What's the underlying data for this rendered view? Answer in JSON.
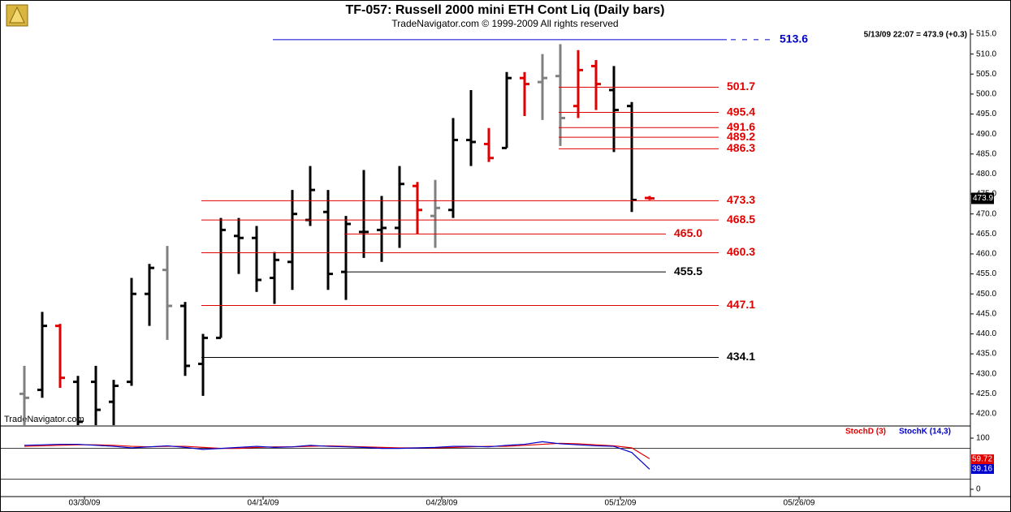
{
  "chart_data": [
    {
      "type": "ohlc",
      "title": "TF-057:  Russell 2000 mini ETH Cont Liq  (Daily bars)",
      "subtitle": "TradeNavigator.com © 1999-2009 All rights reserved",
      "info": "5/13/09 22:07 = 473.9 (+0.3)",
      "watermark": "TradeNavigator.com",
      "last": {
        "value": 473.9,
        "label": "473.9"
      },
      "open": [
        425,
        426,
        442,
        428,
        428,
        423,
        428,
        450,
        456,
        447,
        432.5,
        439,
        464.5,
        464,
        454,
        458,
        468.5,
        470.5,
        455.5,
        465.5,
        466,
        466.5,
        477,
        469.5,
        471,
        488.5,
        487.5,
        486.5,
        504,
        503,
        504.5,
        497,
        507,
        501,
        497,
        474
      ],
      "high": [
        432,
        445.5,
        442.5,
        429.5,
        432,
        428.5,
        454,
        457.5,
        462,
        448,
        440,
        469,
        469,
        467,
        460.5,
        476,
        482,
        476,
        469.5,
        481,
        474.5,
        482,
        478,
        478.5,
        494,
        501,
        491.5,
        505.5,
        505.5,
        510,
        512.5,
        511,
        508.5,
        507,
        498,
        474.5
      ],
      "low": [
        416,
        424,
        426.5,
        415,
        416,
        416,
        427,
        442,
        438.5,
        429.5,
        424.5,
        439,
        455,
        450.5,
        447.5,
        451,
        467,
        451,
        448.5,
        459,
        458,
        461.5,
        465,
        461.5,
        469,
        482,
        483,
        486.5,
        494.5,
        493.5,
        487,
        494,
        496,
        485.5,
        470.5,
        473.5
      ],
      "close": [
        424,
        442,
        429,
        418,
        421,
        427,
        450,
        456.5,
        447,
        432,
        439,
        466,
        464,
        453.5,
        458.5,
        470,
        476,
        455,
        467.5,
        465.5,
        466.5,
        477.5,
        471,
        471.5,
        488.5,
        488,
        484,
        504,
        502.5,
        504,
        494,
        506,
        502.5,
        496,
        473.5,
        473.9
      ],
      "bar_colors": [
        "#808080",
        "#000000",
        "#e00000",
        "#000000",
        "#000000",
        "#000000",
        "#000000",
        "#000000",
        "#808080",
        "#000000",
        "#000000",
        "#000000",
        "#000000",
        "#000000",
        "#000000",
        "#000000",
        "#000000",
        "#000000",
        "#000000",
        "#000000",
        "#000000",
        "#000000",
        "#e00000",
        "#808080",
        "#000000",
        "#000000",
        "#e00000",
        "#000000",
        "#e00000",
        "#808080",
        "#808080",
        "#e00000",
        "#e00000",
        "#000000",
        "#000000",
        "#e00000"
      ],
      "levels": [
        {
          "value": 513.6,
          "label": "513.6",
          "color": "#0000cc"
        },
        {
          "value": 501.7,
          "label": "501.7",
          "color": "#e00000"
        },
        {
          "value": 495.4,
          "label": "495.4",
          "color": "#e00000"
        },
        {
          "value": 491.6,
          "label": "491.6",
          "color": "#e00000"
        },
        {
          "value": 489.2,
          "label": "489.2",
          "color": "#e00000"
        },
        {
          "value": 486.3,
          "label": "486.3",
          "color": "#e00000"
        },
        {
          "value": 473.3,
          "label": "473.3",
          "color": "#e00000"
        },
        {
          "value": 468.5,
          "label": "468.5",
          "color": "#e00000"
        },
        {
          "value": 465.0,
          "label": "465.0",
          "color": "#e00000"
        },
        {
          "value": 460.3,
          "label": "460.3",
          "color": "#e00000"
        },
        {
          "value": 455.5,
          "label": "455.5",
          "color": "#000000"
        },
        {
          "value": 447.1,
          "label": "447.1",
          "color": "#e00000"
        },
        {
          "value": 434.1,
          "label": "434.1",
          "color": "#000000"
        }
      ],
      "ylim": [
        420,
        515
      ],
      "yticks": [
        {
          "value": 420,
          "label": "420.0"
        },
        {
          "value": 425,
          "label": "425.0"
        },
        {
          "value": 430,
          "label": "430.0"
        },
        {
          "value": 435,
          "label": "435.0"
        },
        {
          "value": 440,
          "label": "440.0"
        },
        {
          "value": 445,
          "label": "445.0"
        },
        {
          "value": 450,
          "label": "450.0"
        },
        {
          "value": 455,
          "label": "455.0"
        },
        {
          "value": 460,
          "label": "460.0"
        },
        {
          "value": 465,
          "label": "465.0"
        },
        {
          "value": 470,
          "label": "470.0"
        },
        {
          "value": 475,
          "label": "475.0"
        },
        {
          "value": 480,
          "label": "480.0"
        },
        {
          "value": 485,
          "label": "485.0"
        },
        {
          "value": 490,
          "label": "490.0"
        },
        {
          "value": 495,
          "label": "495.0"
        },
        {
          "value": 500,
          "label": "500.0"
        },
        {
          "value": 505,
          "label": "505.0"
        },
        {
          "value": 510,
          "label": "510.0"
        },
        {
          "value": 515,
          "label": "515.0"
        }
      ],
      "xticks": [
        {
          "value": 3,
          "label": "03/30/09"
        },
        {
          "value": 13,
          "label": "04/14/09"
        },
        {
          "value": 23,
          "label": "04/28/09"
        },
        {
          "value": 33,
          "label": "05/12/09"
        },
        {
          "value": 43,
          "label": "05/26/09"
        }
      ]
    },
    {
      "type": "line",
      "series": [
        {
          "name": "StochD (3)",
          "color": "#e00000",
          "values": [
            84,
            85,
            86,
            87,
            87,
            86,
            84,
            83,
            84,
            84,
            82,
            80,
            80,
            82,
            83,
            83,
            84,
            85,
            84,
            83,
            82,
            81,
            81,
            81,
            82,
            83,
            84,
            84,
            86,
            88,
            90,
            89,
            87,
            85,
            81,
            59.72
          ]
        },
        {
          "name": "StochK (14,3)",
          "color": "#0000cc",
          "values": [
            86,
            87,
            88,
            88,
            86,
            84,
            81,
            83,
            85,
            82,
            78,
            80,
            82,
            84,
            82,
            83,
            86,
            84,
            83,
            82,
            80,
            80,
            81,
            82,
            84,
            84,
            83,
            86,
            88,
            93,
            89,
            87,
            85,
            84,
            72,
            39.16
          ]
        }
      ],
      "ylim": [
        0,
        100
      ],
      "yticks": [
        0,
        100
      ],
      "hlines": [
        20,
        80
      ]
    }
  ]
}
